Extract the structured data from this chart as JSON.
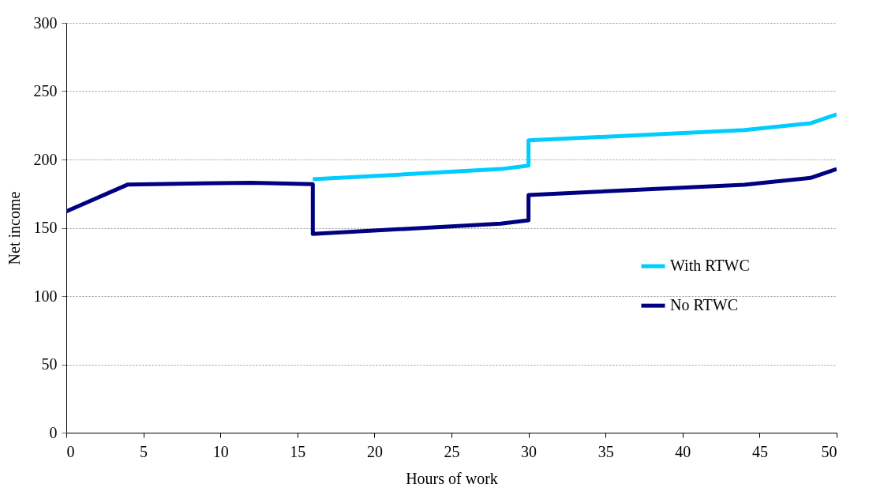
{
  "chart_data": {
    "type": "line",
    "xlabel": "Hours of work",
    "ylabel": "Net income",
    "xlim": [
      0,
      50
    ],
    "xticks": [
      0,
      5,
      10,
      15,
      20,
      25,
      30,
      35,
      40,
      45,
      50
    ],
    "ylim": [
      0,
      300
    ],
    "yticks": [
      0,
      50,
      100,
      150,
      200,
      250,
      300
    ],
    "grid": "y",
    "legend": "right",
    "line_style": "solid",
    "marker": "none",
    "series": [
      {
        "name": "With RTWC",
        "color": "#00ccff",
        "x": [
          16,
          28.2,
          30,
          30,
          44,
          48.3,
          50
        ],
        "values": [
          185.5,
          193,
          195.5,
          214,
          221.5,
          226.5,
          233
        ]
      },
      {
        "name": "No RTWC",
        "color": "#000080",
        "x": [
          0,
          4,
          12,
          16,
          16,
          28.2,
          30,
          30,
          44,
          48.3,
          50
        ],
        "values": [
          162,
          181.7,
          183,
          182,
          145.5,
          153,
          155.5,
          174,
          181.5,
          186.5,
          193
        ]
      }
    ]
  }
}
